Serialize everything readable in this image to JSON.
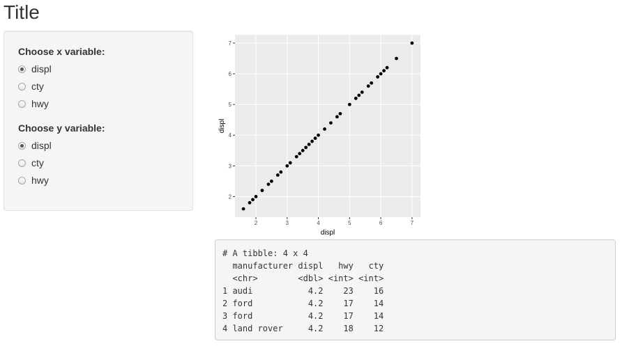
{
  "title": "Title",
  "sidebar": {
    "groups": [
      {
        "label": "Choose x variable:",
        "options": [
          "displ",
          "cty",
          "hwy"
        ],
        "selected": 0
      },
      {
        "label": "Choose y variable:",
        "options": [
          "displ",
          "cty",
          "hwy"
        ],
        "selected": 0
      }
    ]
  },
  "chart_data": {
    "type": "scatter",
    "x_label": "displ",
    "y_label": "displ",
    "x": [
      1.6,
      1.8,
      1.9,
      2.0,
      2.2,
      2.4,
      2.5,
      2.7,
      2.8,
      3.0,
      3.1,
      3.3,
      3.4,
      3.5,
      3.6,
      3.7,
      3.8,
      3.9,
      4.0,
      4.2,
      4.4,
      4.6,
      4.7,
      5.0,
      5.2,
      5.3,
      5.4,
      5.6,
      5.7,
      5.9,
      6.0,
      6.1,
      6.2,
      6.5,
      7.0
    ],
    "y": [
      1.6,
      1.8,
      1.9,
      2.0,
      2.2,
      2.4,
      2.5,
      2.7,
      2.8,
      3.0,
      3.1,
      3.3,
      3.4,
      3.5,
      3.6,
      3.7,
      3.8,
      3.9,
      4.0,
      4.2,
      4.4,
      4.6,
      4.7,
      5.0,
      5.2,
      5.3,
      5.4,
      5.6,
      5.7,
      5.9,
      6.0,
      6.1,
      6.2,
      6.5,
      7.0
    ],
    "color": "#000000",
    "xlim": [
      1.33,
      7.27
    ],
    "ylim": [
      1.33,
      7.27
    ],
    "xticks": [
      2,
      3,
      4,
      5,
      6,
      7
    ],
    "yticks": [
      2,
      3,
      4,
      5,
      6,
      7
    ],
    "grid": true
  },
  "console": {
    "lines": [
      "# A tibble: 4 x 4",
      "  manufacturer displ   hwy   cty",
      "  <chr>        <dbl> <int> <int>",
      "1 audi           4.2    23    16",
      "2 ford           4.2    17    14",
      "3 ford           4.2    17    14",
      "4 land rover     4.2    18    12"
    ]
  }
}
